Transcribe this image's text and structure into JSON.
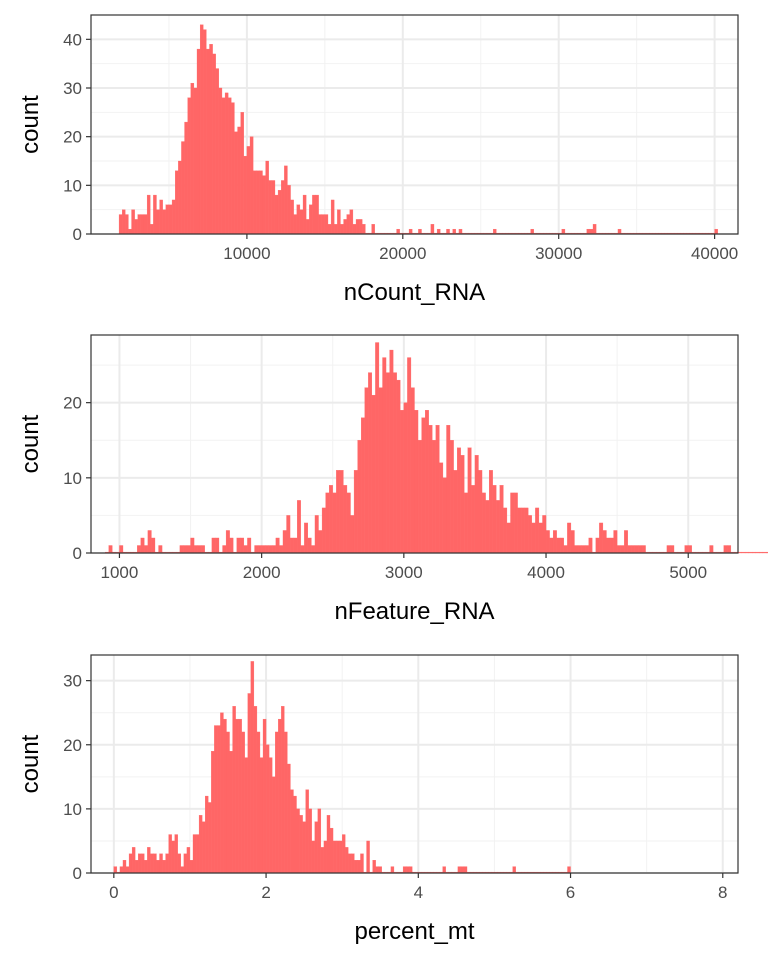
{
  "chart_data": [
    {
      "type": "histogram",
      "xlabel": "nCount_RNA",
      "ylabel": "count",
      "xlim": [
        0,
        41500
      ],
      "ylim": [
        0,
        45
      ],
      "xticks": [
        10000,
        20000,
        30000,
        40000
      ],
      "x_tick_labels": [
        "10000",
        "20000",
        "30000",
        "40000"
      ],
      "yticks": [
        0,
        10,
        20,
        30,
        40
      ],
      "y_tick_labels": [
        "0",
        "10",
        "20",
        "30",
        "40"
      ],
      "x_start": 1800,
      "bin_width": 200,
      "bar_color": "#ff6666",
      "grid": true,
      "counts": [
        4,
        5,
        4,
        1,
        5,
        3,
        4,
        4,
        4,
        8,
        2,
        8,
        5,
        7,
        5,
        6,
        6,
        7,
        13,
        15,
        19,
        23,
        28,
        31,
        30,
        38,
        43,
        42,
        38,
        39,
        37,
        34,
        30,
        28,
        29,
        28,
        27,
        21,
        22,
        25,
        16,
        18,
        20,
        13,
        13,
        13,
        12,
        15,
        11,
        11,
        8,
        9,
        11,
        14,
        10,
        7,
        4,
        6,
        5,
        8,
        3,
        6,
        8,
        8,
        4,
        4,
        4,
        2,
        7,
        2,
        5,
        2,
        3,
        4,
        5,
        2,
        3,
        3,
        2,
        0,
        0,
        2,
        0,
        0,
        0,
        0,
        0,
        0,
        0,
        1,
        0,
        0,
        0,
        1,
        0,
        0,
        1,
        0,
        0,
        0,
        2,
        0,
        1,
        0,
        0,
        1,
        0,
        1,
        0,
        1,
        0,
        0,
        0,
        0,
        0,
        0,
        0,
        0,
        0,
        0,
        1,
        0,
        0,
        0,
        0,
        0,
        0,
        0,
        0,
        0,
        0,
        0,
        1,
        0,
        0,
        0,
        0,
        0,
        0,
        0,
        0,
        0,
        1,
        0,
        0,
        0,
        0,
        0,
        0,
        0,
        1,
        1,
        2,
        0,
        0,
        0,
        0,
        0,
        0,
        0,
        1,
        0,
        0,
        0,
        0,
        0,
        0,
        0,
        0,
        0,
        0,
        0,
        0,
        0,
        0,
        0,
        0,
        0,
        0,
        0,
        0,
        0,
        0,
        0,
        0,
        0,
        0,
        0,
        0,
        0,
        0,
        1
      ]
    },
    {
      "type": "histogram",
      "xlabel": "nFeature_RNA",
      "ylabel": "count",
      "xlim": [
        800,
        5350
      ],
      "ylim": [
        0,
        29
      ],
      "xticks": [
        1000,
        2000,
        3000,
        4000,
        5000
      ],
      "x_tick_labels": [
        "1000",
        "2000",
        "3000",
        "4000",
        "5000"
      ],
      "yticks": [
        0,
        10,
        20
      ],
      "y_tick_labels": [
        "0",
        "10",
        "20"
      ],
      "x_start": 900,
      "bin_width": 25,
      "bar_color": "#ff6666",
      "grid": true,
      "counts": [
        0,
        1,
        0,
        0,
        1,
        0,
        0,
        0,
        0,
        1,
        2,
        1,
        3,
        2,
        0,
        1,
        0,
        0,
        0,
        0,
        0,
        1,
        1,
        1,
        2,
        1,
        1,
        1,
        0,
        0,
        2,
        2,
        0,
        1,
        3,
        2,
        0,
        2,
        2,
        1,
        2,
        0,
        1,
        1,
        1,
        1,
        1,
        1,
        2,
        1,
        3,
        5,
        2,
        2,
        7,
        1,
        4,
        2,
        1,
        5,
        3,
        6,
        8,
        9,
        8,
        11,
        11,
        9,
        8,
        5,
        11,
        15,
        18,
        22,
        24,
        21,
        28,
        22,
        26,
        24,
        27,
        24,
        23,
        19,
        20,
        26,
        22,
        19,
        15,
        18,
        19,
        17,
        15,
        17,
        12,
        10,
        17,
        15,
        11,
        14,
        13,
        8,
        14,
        9,
        13,
        11,
        8,
        7,
        11,
        9,
        7,
        9,
        6,
        4,
        8,
        8,
        6,
        6,
        6,
        5,
        4,
        6,
        4,
        5,
        3,
        2,
        3,
        2,
        2,
        1,
        4,
        3,
        1,
        1,
        1,
        1,
        2,
        0,
        2,
        4,
        3,
        2,
        2,
        3,
        1,
        1,
        3,
        1,
        1,
        1,
        1,
        1,
        0,
        0,
        0,
        0,
        0,
        0,
        1,
        1,
        0,
        0,
        0,
        1,
        1,
        0,
        0,
        0,
        0,
        0,
        1,
        0,
        0,
        0,
        1,
        1,
        0,
        0,
        0,
        0,
        0,
        0,
        0,
        0,
        0,
        0,
        0,
        0,
        0,
        0,
        0,
        0,
        0,
        0,
        0,
        0,
        0,
        0,
        1
      ]
    },
    {
      "type": "histogram",
      "xlabel": "percent_mt",
      "ylabel": "count",
      "xlim": [
        -0.3,
        8.2
      ],
      "ylim": [
        0,
        34
      ],
      "xticks": [
        0,
        2,
        4,
        6,
        8
      ],
      "x_tick_labels": [
        "0",
        "2",
        "4",
        "6",
        "8"
      ],
      "yticks": [
        0,
        10,
        20,
        30
      ],
      "y_tick_labels": [
        "0",
        "10",
        "20",
        "30"
      ],
      "x_start": 0,
      "bin_width": 0.04,
      "bar_color": "#ff6666",
      "grid": true,
      "counts": [
        1,
        0,
        1,
        2,
        1,
        3,
        4,
        2,
        3,
        3,
        2,
        4,
        3,
        3,
        2,
        3,
        2,
        3,
        6,
        5,
        6,
        3,
        1,
        3,
        4,
        2,
        6,
        6,
        9,
        8,
        12,
        11,
        19,
        23,
        23,
        25,
        24,
        22,
        19,
        26,
        24,
        24,
        22,
        18,
        28,
        33,
        26,
        22,
        18,
        24,
        20,
        18,
        15,
        22,
        24,
        26,
        22,
        17,
        13,
        12,
        10,
        9,
        8,
        13,
        10,
        5,
        8,
        10,
        4,
        5,
        9,
        7,
        5,
        5,
        5,
        6,
        4,
        3,
        3,
        2,
        2,
        3,
        0,
        5,
        0,
        2,
        1,
        1,
        0,
        0,
        0,
        1,
        0,
        0,
        0,
        1,
        1,
        1,
        0,
        0,
        0,
        0,
        0,
        0,
        0,
        0,
        0,
        0,
        1,
        0,
        0,
        0,
        0,
        1,
        1,
        1,
        0,
        0,
        0,
        0,
        0,
        0,
        0,
        0,
        0,
        0,
        0,
        0,
        0,
        0,
        0,
        1,
        0,
        0,
        0,
        0,
        0,
        0,
        0,
        0,
        0,
        0,
        0,
        0,
        0,
        0,
        0,
        0,
        0,
        1
      ]
    }
  ]
}
